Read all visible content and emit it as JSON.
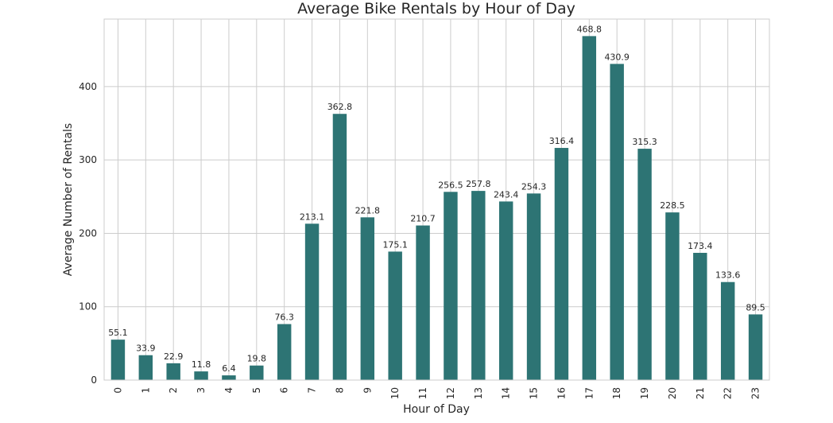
{
  "chart_data": {
    "type": "bar",
    "title": "Average Bike Rentals by Hour of Day",
    "xlabel": "Hour of Day",
    "ylabel": "Average Number of Rentals",
    "categories": [
      "0",
      "1",
      "2",
      "3",
      "4",
      "5",
      "6",
      "7",
      "8",
      "9",
      "10",
      "11",
      "12",
      "13",
      "14",
      "15",
      "16",
      "17",
      "18",
      "19",
      "20",
      "21",
      "22",
      "23"
    ],
    "values": [
      55.1,
      33.9,
      22.9,
      11.8,
      6.4,
      19.8,
      76.3,
      213.1,
      362.8,
      221.8,
      175.1,
      210.7,
      256.5,
      257.8,
      243.4,
      254.3,
      316.4,
      468.8,
      430.9,
      315.3,
      228.5,
      173.4,
      133.6,
      89.5
    ],
    "data_labels": [
      "55.1",
      "33.9",
      "22.9",
      "11.8",
      "6.4",
      "19.8",
      "76.3",
      "213.1",
      "362.8",
      "221.8",
      "175.1",
      "210.7",
      "256.5",
      "257.8",
      "243.4",
      "254.3",
      "316.4",
      "468.8",
      "430.9",
      "315.3",
      "228.5",
      "173.4",
      "133.6",
      "89.5"
    ],
    "yticks": [
      0,
      100,
      200,
      300,
      400
    ],
    "ylim": [
      0,
      492
    ],
    "grid": true,
    "bar_color": "#2d7474",
    "grid_color": "#cccccc",
    "x_tick_rotation": "vertical"
  }
}
